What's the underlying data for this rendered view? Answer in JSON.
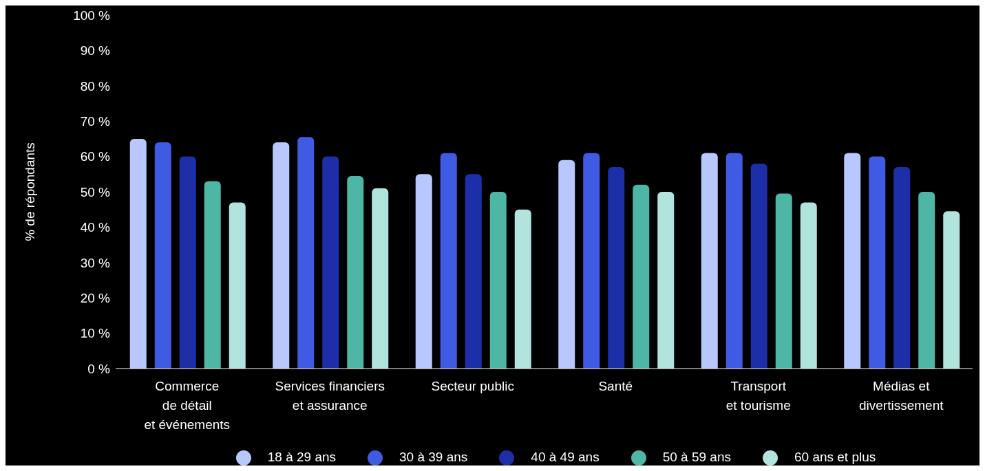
{
  "chart_data": {
    "type": "bar",
    "ylabel": "% de répondants",
    "categories": [
      "Commerce\nde détail\net événements",
      "Services financiers\net assurance",
      "Secteur public",
      "Santé",
      "Transport\net tourisme",
      "Médias et\ndivertissement"
    ],
    "series": [
      {
        "name": "18 à 29 ans",
        "color": "#b8c8ff",
        "values": [
          65,
          64,
          55,
          59,
          61,
          61
        ]
      },
      {
        "name": "30 à 39 ans",
        "color": "#3f5be3",
        "values": [
          64,
          65.5,
          61,
          61,
          61,
          60
        ]
      },
      {
        "name": "40 à 49 ans",
        "color": "#1c2fa8",
        "values": [
          60,
          60,
          55,
          57,
          58,
          57
        ]
      },
      {
        "name": "50 à 59 ans",
        "color": "#4db6a4",
        "values": [
          53,
          54.5,
          50,
          52,
          49.5,
          50
        ]
      },
      {
        "name": "60 ans et plus",
        "color": "#b2e4de",
        "values": [
          47,
          51,
          45,
          50,
          47,
          44.5
        ]
      }
    ],
    "ylim": [
      0,
      100
    ],
    "yticks": [
      {
        "value": 0,
        "label": "0 %"
      },
      {
        "value": 10,
        "label": "10 %"
      },
      {
        "value": 20,
        "label": "20 %"
      },
      {
        "value": 30,
        "label": "30 %"
      },
      {
        "value": 40,
        "label": "40 %"
      },
      {
        "value": 50,
        "label": "50 %"
      },
      {
        "value": 60,
        "label": "60 %"
      },
      {
        "value": 70,
        "label": "70 %"
      },
      {
        "value": 80,
        "label": "80 %"
      },
      {
        "value": 90,
        "label": "90 %"
      },
      {
        "value": 100,
        "label": "100 %"
      }
    ],
    "grid": false,
    "legend": "bottom"
  }
}
